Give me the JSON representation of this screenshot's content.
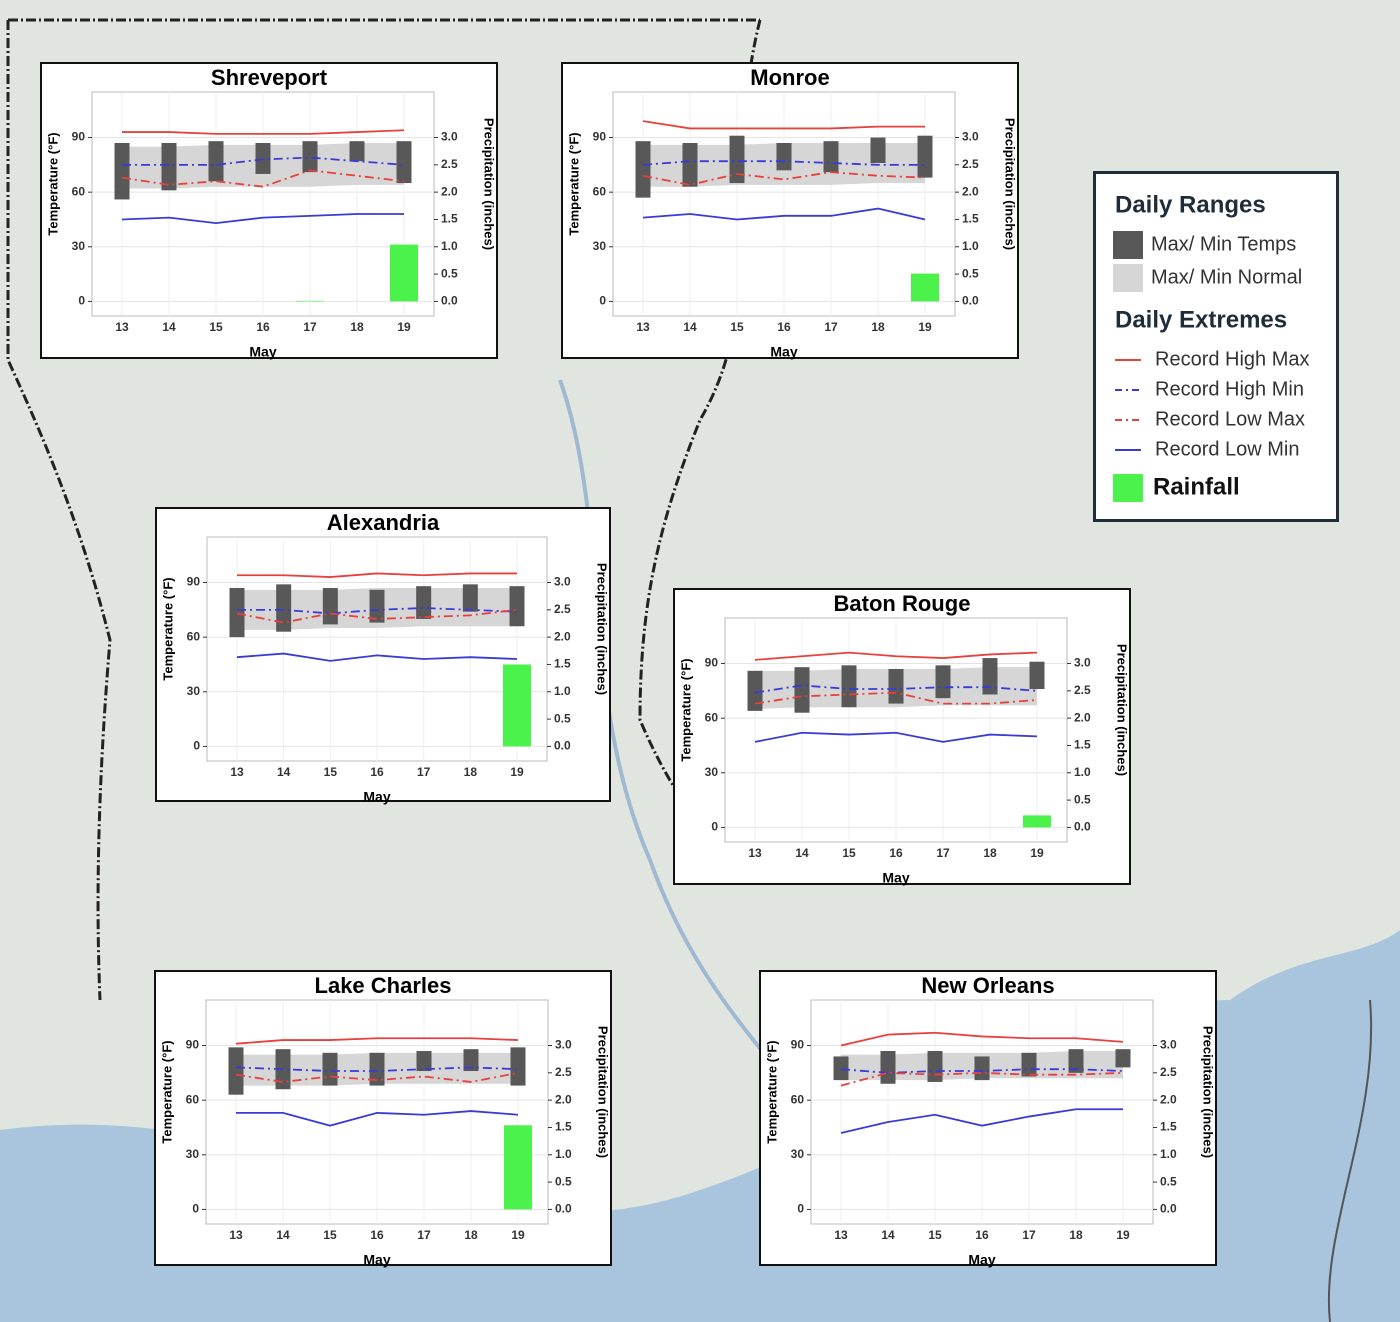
{
  "chart_data": [
    {
      "type": "combo",
      "title": "Shreveport",
      "xlabel": "May",
      "ylabel": "Temperature (°F)",
      "y2label": "Precipitation (inches)",
      "categories": [
        "13",
        "14",
        "15",
        "16",
        "17",
        "18",
        "19"
      ],
      "temp_max": [
        87,
        87,
        88,
        87,
        88,
        88,
        88
      ],
      "temp_min": [
        56,
        61,
        66,
        70,
        71,
        77,
        65
      ],
      "normal_max": [
        85,
        85,
        86,
        86,
        86,
        87,
        87
      ],
      "normal_min": [
        62,
        62,
        63,
        63,
        63,
        64,
        64
      ],
      "record_high_max": [
        93,
        93,
        92,
        92,
        92,
        93,
        94
      ],
      "record_high_min": [
        75,
        75,
        75,
        78,
        79,
        77,
        75
      ],
      "record_low_max": [
        68,
        64,
        66,
        63,
        72,
        69,
        66
      ],
      "record_low_min": [
        45,
        46,
        43,
        46,
        47,
        48,
        48
      ],
      "rainfall": [
        0,
        0,
        0,
        0,
        0.01,
        0,
        1.04
      ],
      "ylim": [
        -8,
        115
      ],
      "yticks": [
        0,
        30,
        60,
        90
      ],
      "y2lim": [
        -0.267,
        3.833
      ],
      "y2ticks": [
        {
          "value": 0,
          "label": "0.0"
        },
        0.5,
        {
          "value": 1,
          "label": "1.0"
        },
        1.5,
        {
          "value": 2,
          "label": "2.0"
        },
        2.5,
        {
          "value": 3,
          "label": "3.0"
        }
      ],
      "grid": true
    },
    {
      "type": "combo",
      "title": "Monroe",
      "xlabel": "May",
      "ylabel": "Temperature (°F)",
      "y2label": "Precipitation (inches)",
      "categories": [
        "13",
        "14",
        "15",
        "16",
        "17",
        "18",
        "19"
      ],
      "temp_max": [
        88,
        87,
        91,
        87,
        88,
        90,
        91
      ],
      "temp_min": [
        57,
        63,
        65,
        72,
        71,
        76,
        68
      ],
      "normal_max": [
        86,
        86,
        86,
        87,
        87,
        87,
        87
      ],
      "normal_min": [
        63,
        63,
        64,
        64,
        64,
        65,
        65
      ],
      "record_high_max": [
        99,
        95,
        95,
        95,
        95,
        96,
        96
      ],
      "record_high_min": [
        75,
        77,
        77,
        77,
        76,
        75,
        75
      ],
      "record_low_max": [
        69,
        64,
        70,
        67,
        71,
        69,
        68
      ],
      "record_low_min": [
        46,
        48,
        45,
        47,
        47,
        51,
        45
      ],
      "rainfall": [
        0,
        0,
        0,
        0,
        0,
        0,
        0.51
      ],
      "ylim": [
        -8,
        115
      ],
      "yticks": [
        0,
        30,
        60,
        90
      ],
      "y2lim": [
        -0.267,
        3.833
      ],
      "y2ticks": [
        {
          "value": 0,
          "label": "0.0"
        },
        0.5,
        {
          "value": 1,
          "label": "1.0"
        },
        1.5,
        {
          "value": 2,
          "label": "2.0"
        },
        2.5,
        {
          "value": 3,
          "label": "3.0"
        }
      ],
      "grid": true
    },
    {
      "type": "combo",
      "title": "Alexandria",
      "xlabel": "May",
      "ylabel": "Temperature (°F)",
      "y2label": "Precipitation (inches)",
      "categories": [
        "13",
        "14",
        "15",
        "16",
        "17",
        "18",
        "19"
      ],
      "temp_max": [
        87,
        89,
        87,
        86,
        88,
        89,
        88
      ],
      "temp_min": [
        60,
        63,
        67,
        68,
        70,
        74,
        66
      ],
      "normal_max": [
        86,
        86,
        86,
        87,
        87,
        87,
        87
      ],
      "normal_min": [
        64,
        64,
        65,
        65,
        66,
        66,
        66
      ],
      "record_high_max": [
        94,
        94,
        93,
        95,
        94,
        95,
        95
      ],
      "record_high_min": [
        75,
        75,
        73,
        75,
        76,
        75,
        74
      ],
      "record_low_max": [
        73,
        68,
        73,
        70,
        71,
        72,
        75
      ],
      "record_low_min": [
        49,
        51,
        47,
        50,
        48,
        49,
        48
      ],
      "rainfall": [
        0,
        0,
        0,
        0,
        0,
        0,
        1.5
      ],
      "ylim": [
        -8,
        115
      ],
      "yticks": [
        0,
        30,
        60,
        90
      ],
      "y2lim": [
        -0.267,
        3.833
      ],
      "y2ticks": [
        {
          "value": 0,
          "label": "0.0"
        },
        0.5,
        {
          "value": 1,
          "label": "1.0"
        },
        1.5,
        {
          "value": 2,
          "label": "2.0"
        },
        2.5,
        {
          "value": 3,
          "label": "3.0"
        }
      ],
      "grid": true
    },
    {
      "type": "combo",
      "title": "Baton Rouge",
      "xlabel": "May",
      "ylabel": "Temperature (°F)",
      "y2label": "Precipitation (inches)",
      "categories": [
        "13",
        "14",
        "15",
        "16",
        "17",
        "18",
        "19"
      ],
      "temp_max": [
        86,
        88,
        89,
        87,
        89,
        93,
        91
      ],
      "temp_min": [
        64,
        63,
        66,
        68,
        71,
        73,
        76
      ],
      "normal_max": [
        86,
        86,
        87,
        87,
        87,
        88,
        88
      ],
      "normal_min": [
        65,
        66,
        66,
        66,
        67,
        67,
        67
      ],
      "record_high_max": [
        92,
        94,
        96,
        94,
        93,
        95,
        96
      ],
      "record_high_min": [
        74,
        78,
        76,
        76,
        77,
        77,
        75
      ],
      "record_low_max": [
        68,
        72,
        73,
        74,
        68,
        68,
        70
      ],
      "record_low_min": [
        47,
        52,
        51,
        52,
        47,
        51,
        50
      ],
      "rainfall": [
        0,
        0,
        0,
        0,
        0,
        0,
        0.22
      ],
      "ylim": [
        -8,
        115
      ],
      "yticks": [
        0,
        30,
        60,
        90
      ],
      "y2lim": [
        -0.267,
        3.833
      ],
      "y2ticks": [
        {
          "value": 0,
          "label": "0.0"
        },
        0.5,
        {
          "value": 1,
          "label": "1.0"
        },
        1.5,
        {
          "value": 2,
          "label": "2.0"
        },
        2.5,
        {
          "value": 3,
          "label": "3.0"
        }
      ],
      "grid": true
    },
    {
      "type": "combo",
      "title": "Lake Charles",
      "xlabel": "May",
      "ylabel": "Temperature (°F)",
      "y2label": "Precipitation (inches)",
      "categories": [
        "13",
        "14",
        "15",
        "16",
        "17",
        "18",
        "19"
      ],
      "temp_max": [
        89,
        88,
        86,
        86,
        87,
        88,
        89
      ],
      "temp_min": [
        63,
        66,
        68,
        68,
        76,
        76,
        68
      ],
      "normal_max": [
        85,
        85,
        85,
        86,
        86,
        86,
        86
      ],
      "normal_min": [
        68,
        68,
        68,
        69,
        69,
        69,
        69
      ],
      "record_high_max": [
        91,
        93,
        93,
        94,
        94,
        94,
        93
      ],
      "record_high_min": [
        78,
        77,
        76,
        76,
        77,
        78,
        77
      ],
      "record_low_max": [
        74,
        70,
        73,
        71,
        73,
        70,
        75
      ],
      "record_low_min": [
        53,
        53,
        46,
        53,
        52,
        54,
        52
      ],
      "rainfall": [
        0,
        0,
        0,
        0,
        0,
        0,
        1.54
      ],
      "ylim": [
        -8,
        115
      ],
      "yticks": [
        0,
        30,
        60,
        90
      ],
      "y2lim": [
        -0.267,
        3.833
      ],
      "y2ticks": [
        {
          "value": 0,
          "label": "0.0"
        },
        0.5,
        {
          "value": 1,
          "label": "1.0"
        },
        1.5,
        {
          "value": 2,
          "label": "2.0"
        },
        2.5,
        {
          "value": 3,
          "label": "3.0"
        }
      ],
      "grid": true
    },
    {
      "type": "combo",
      "title": "New Orleans",
      "xlabel": "May",
      "ylabel": "Temperature (°F)",
      "y2label": "Precipitation (inches)",
      "categories": [
        "13",
        "14",
        "15",
        "16",
        "17",
        "18",
        "19"
      ],
      "temp_max": [
        84,
        87,
        87,
        84,
        86,
        88,
        88
      ],
      "temp_min": [
        71,
        69,
        70,
        71,
        73,
        75,
        78
      ],
      "normal_max": [
        85,
        85,
        86,
        86,
        86,
        87,
        87
      ],
      "normal_min": [
        71,
        71,
        71,
        72,
        72,
        72,
        72
      ],
      "record_high_max": [
        90,
        96,
        97,
        95,
        94,
        94,
        92
      ],
      "record_high_min": [
        77,
        75,
        76,
        76,
        77,
        77,
        76
      ],
      "record_low_max": [
        68,
        75,
        74,
        75,
        74,
        74,
        75
      ],
      "record_low_min": [
        42,
        48,
        52,
        46,
        51,
        55,
        55
      ],
      "rainfall": [
        0,
        0,
        0,
        0,
        0,
        0,
        0
      ],
      "ylim": [
        -8,
        115
      ],
      "yticks": [
        0,
        30,
        60,
        90
      ],
      "y2lim": [
        -0.267,
        3.833
      ],
      "y2ticks": [
        {
          "value": 0,
          "label": "0.0"
        },
        0.5,
        {
          "value": 1,
          "label": "1.0"
        },
        1.5,
        {
          "value": 2,
          "label": "2.0"
        },
        2.5,
        {
          "value": 3,
          "label": "3.0"
        }
      ],
      "grid": true
    }
  ],
  "legend": {
    "sections": [
      {
        "title": "Daily Ranges",
        "items": [
          {
            "name": "Max/ Min Temps",
            "key": "temp",
            "color": "#585858",
            "style": "box"
          },
          {
            "name": "Max/ Min Normal",
            "key": "normal",
            "color": "#d6d6d6",
            "style": "box"
          }
        ]
      },
      {
        "title": "Daily Extremes",
        "items": [
          {
            "name": "Record High Max",
            "key": "record_high_max",
            "color": "#e8403c",
            "style": "solid"
          },
          {
            "name": "Record High Min",
            "key": "record_high_min",
            "color": "#3a3ad8",
            "style": "dashdot"
          },
          {
            "name": "Record Low Max",
            "key": "record_low_max",
            "color": "#e8403c",
            "style": "dashdot"
          },
          {
            "name": "Record Low Min",
            "key": "record_low_min",
            "color": "#3a3ad8",
            "style": "solid"
          },
          {
            "name": "Rainfall",
            "key": "rainfall",
            "color": "#4cf24c",
            "style": "box"
          }
        ]
      }
    ]
  }
}
